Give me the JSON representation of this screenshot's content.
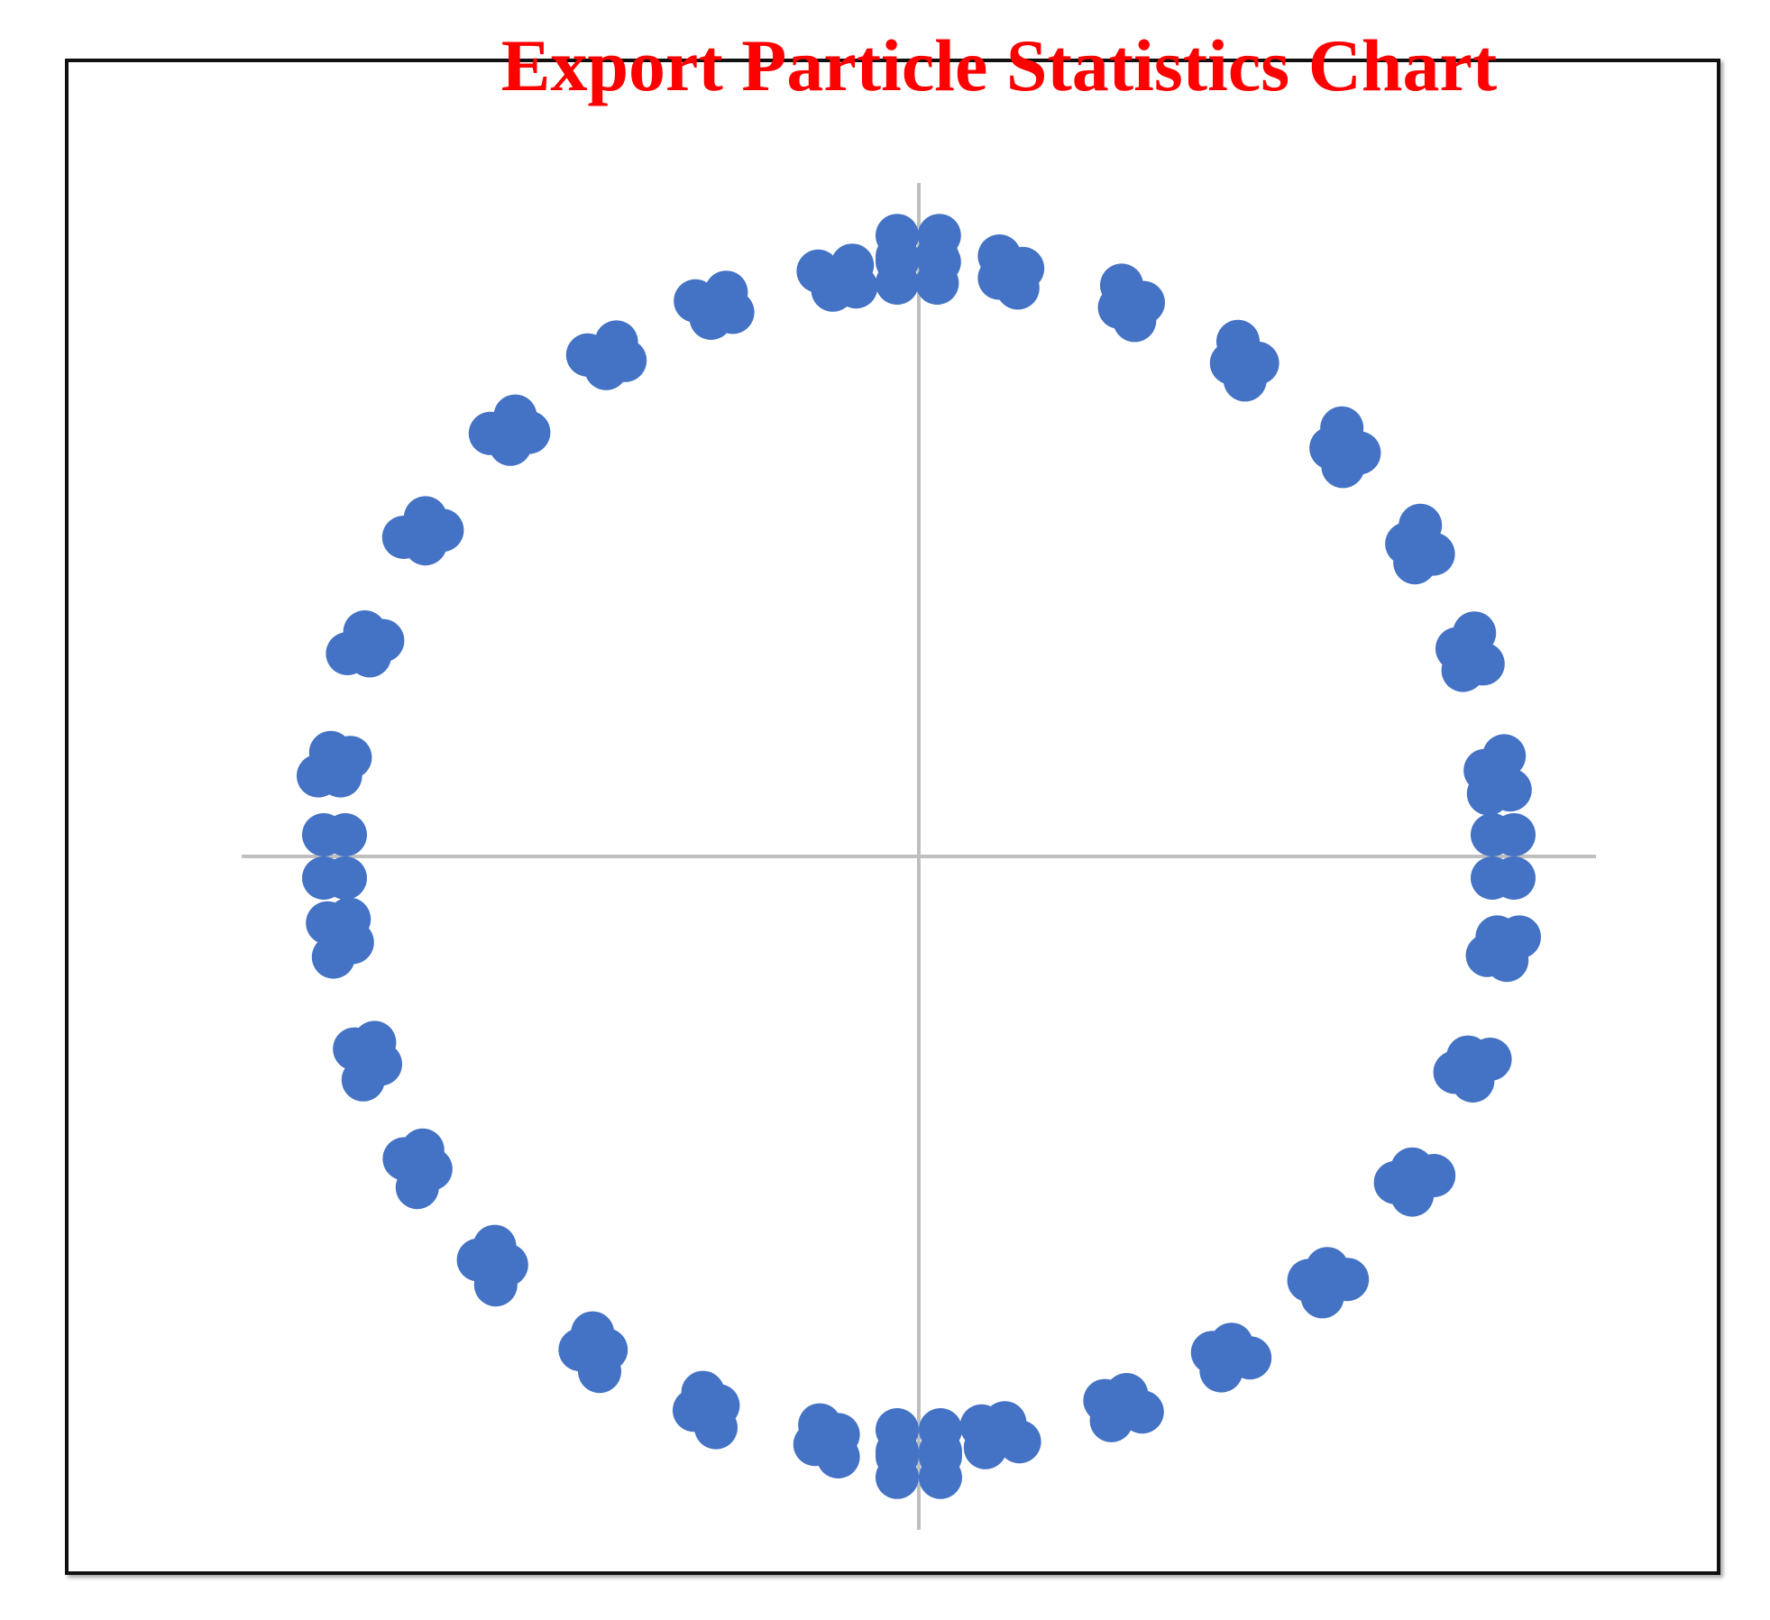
{
  "colors": {
    "title": "#ff0000",
    "marker": "#4472c4",
    "axis": "#bfbfbf",
    "frame": "#111111",
    "background": "#ffffff"
  },
  "chart_data": {
    "type": "scatter",
    "title": "Export Particle Statistics Chart",
    "xlabel": "",
    "ylabel": "",
    "xlim": [
      -1.25,
      1.25
    ],
    "ylim": [
      -1.25,
      1.25
    ],
    "grid": false,
    "legend": "none",
    "axes_through_origin": true,
    "tick_labels": false,
    "series": [
      {
        "marker": "circle",
        "points": [
          [
            1.1,
            0.04
          ],
          [
            1.06,
            0.04
          ],
          [
            1.1,
            -0.04
          ],
          [
            1.06,
            -0.04
          ],
          [
            1.093,
            0.123
          ],
          [
            1.053,
            0.116
          ],
          [
            1.082,
            0.186
          ],
          [
            1.047,
            0.159
          ],
          [
            1.043,
            0.356
          ],
          [
            1.006,
            0.344
          ],
          [
            1.027,
            0.413
          ],
          [
            0.995,
            0.384
          ],
          [
            0.951,
            0.559
          ],
          [
            0.917,
            0.543
          ],
          [
            0.927,
            0.612
          ],
          [
            0.902,
            0.578
          ],
          [
            0.814,
            0.746
          ],
          [
            0.784,
            0.721
          ],
          [
            0.782,
            0.792
          ],
          [
            0.762,
            0.755
          ],
          [
            0.626,
            0.912
          ],
          [
            0.603,
            0.881
          ],
          [
            0.59,
            0.952
          ],
          [
            0.578,
            0.912
          ],
          [
            0.415,
            1.024
          ],
          [
            0.399,
            0.991
          ],
          [
            0.375,
            1.056
          ],
          [
            0.371,
            1.015
          ],
          [
            0.192,
            1.087
          ],
          [
            0.183,
            1.051
          ],
          [
            0.149,
            1.11
          ],
          [
            0.149,
            1.069
          ],
          [
            0.038,
            1.099
          ],
          [
            0.034,
            1.06
          ],
          [
            0.038,
            1.148
          ],
          [
            0.034,
            1.109
          ],
          [
            -0.04,
            1.1
          ],
          [
            -0.04,
            1.06
          ],
          [
            -0.04,
            1.148
          ],
          [
            -0.04,
            1.109
          ],
          [
            -0.123,
            1.093
          ],
          [
            -0.116,
            1.053
          ],
          [
            -0.186,
            1.082
          ],
          [
            -0.159,
            1.047
          ],
          [
            -0.356,
            1.043
          ],
          [
            -0.344,
            1.006
          ],
          [
            -0.413,
            1.027
          ],
          [
            -0.384,
            0.995
          ],
          [
            -0.559,
            0.951
          ],
          [
            -0.543,
            0.917
          ],
          [
            -0.612,
            0.927
          ],
          [
            -0.578,
            0.902
          ],
          [
            -0.746,
            0.814
          ],
          [
            -0.721,
            0.784
          ],
          [
            -0.792,
            0.782
          ],
          [
            -0.755,
            0.762
          ],
          [
            -0.912,
            0.626
          ],
          [
            -0.881,
            0.603
          ],
          [
            -0.952,
            0.59
          ],
          [
            -0.912,
            0.578
          ],
          [
            -1.024,
            0.415
          ],
          [
            -0.991,
            0.399
          ],
          [
            -1.056,
            0.375
          ],
          [
            -1.015,
            0.371
          ],
          [
            -1.087,
            0.192
          ],
          [
            -1.051,
            0.183
          ],
          [
            -1.11,
            0.149
          ],
          [
            -1.069,
            0.149
          ],
          [
            -1.1,
            0.04
          ],
          [
            -1.06,
            0.04
          ],
          [
            -1.1,
            -0.04
          ],
          [
            -1.06,
            -0.04
          ],
          [
            -1.093,
            -0.123
          ],
          [
            -1.053,
            -0.116
          ],
          [
            -1.082,
            -0.186
          ],
          [
            -1.047,
            -0.159
          ],
          [
            -1.043,
            -0.356
          ],
          [
            -1.006,
            -0.344
          ],
          [
            -1.027,
            -0.413
          ],
          [
            -0.995,
            -0.384
          ],
          [
            -0.951,
            -0.559
          ],
          [
            -0.917,
            -0.543
          ],
          [
            -0.927,
            -0.612
          ],
          [
            -0.902,
            -0.578
          ],
          [
            -0.814,
            -0.746
          ],
          [
            -0.784,
            -0.721
          ],
          [
            -0.782,
            -0.792
          ],
          [
            -0.762,
            -0.755
          ],
          [
            -0.626,
            -0.912
          ],
          [
            -0.603,
            -0.881
          ],
          [
            -0.59,
            -0.952
          ],
          [
            -0.578,
            -0.912
          ],
          [
            -0.415,
            -1.024
          ],
          [
            -0.399,
            -0.991
          ],
          [
            -0.375,
            -1.056
          ],
          [
            -0.371,
            -1.015
          ],
          [
            -0.192,
            -1.087
          ],
          [
            -0.183,
            -1.051
          ],
          [
            -0.149,
            -1.11
          ],
          [
            -0.149,
            -1.069
          ],
          [
            -0.04,
            -1.1
          ],
          [
            -0.04,
            -1.06
          ],
          [
            -0.04,
            -1.148
          ],
          [
            -0.04,
            -1.109
          ],
          [
            0.04,
            -1.1
          ],
          [
            0.04,
            -1.06
          ],
          [
            0.04,
            -1.148
          ],
          [
            0.04,
            -1.109
          ],
          [
            0.123,
            -1.093
          ],
          [
            0.116,
            -1.053
          ],
          [
            0.186,
            -1.082
          ],
          [
            0.159,
            -1.047
          ],
          [
            0.356,
            -1.043
          ],
          [
            0.344,
            -1.006
          ],
          [
            0.413,
            -1.027
          ],
          [
            0.384,
            -0.995
          ],
          [
            0.559,
            -0.951
          ],
          [
            0.543,
            -0.917
          ],
          [
            0.612,
            -0.927
          ],
          [
            0.578,
            -0.902
          ],
          [
            0.746,
            -0.814
          ],
          [
            0.721,
            -0.784
          ],
          [
            0.792,
            -0.782
          ],
          [
            0.755,
            -0.762
          ],
          [
            0.912,
            -0.626
          ],
          [
            0.881,
            -0.603
          ],
          [
            0.952,
            -0.59
          ],
          [
            0.912,
            -0.578
          ],
          [
            1.024,
            -0.415
          ],
          [
            0.991,
            -0.399
          ],
          [
            1.056,
            -0.375
          ],
          [
            1.015,
            -0.371
          ],
          [
            1.087,
            -0.192
          ],
          [
            1.051,
            -0.183
          ],
          [
            1.11,
            -0.149
          ],
          [
            1.069,
            -0.149
          ]
        ]
      }
    ]
  }
}
